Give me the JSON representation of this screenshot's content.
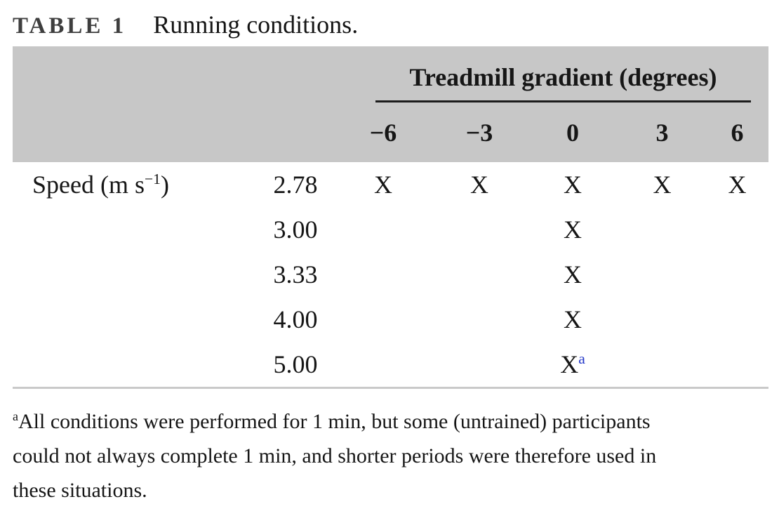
{
  "title": {
    "label": "TABLE 1",
    "caption": "Running conditions."
  },
  "table": {
    "group_header": "Treadmill gradient (degrees)",
    "columns": [
      "−6",
      "−3",
      "0",
      "3",
      "6"
    ],
    "row_header": {
      "prefix": "Speed (m s",
      "sup": "−1",
      "suffix": ")"
    },
    "rows": [
      {
        "speed": "2.78",
        "marks": [
          "X",
          "X",
          "X",
          "X",
          "X"
        ],
        "sups": [
          "",
          "",
          "",
          "",
          ""
        ]
      },
      {
        "speed": "3.00",
        "marks": [
          "",
          "",
          "X",
          "",
          ""
        ],
        "sups": [
          "",
          "",
          "",
          "",
          ""
        ]
      },
      {
        "speed": "3.33",
        "marks": [
          "",
          "",
          "X",
          "",
          ""
        ],
        "sups": [
          "",
          "",
          "",
          "",
          ""
        ]
      },
      {
        "speed": "4.00",
        "marks": [
          "",
          "",
          "X",
          "",
          ""
        ],
        "sups": [
          "",
          "",
          "",
          "",
          ""
        ]
      },
      {
        "speed": "5.00",
        "marks": [
          "",
          "",
          "X",
          "",
          ""
        ],
        "sups": [
          "",
          "",
          "a",
          "",
          ""
        ]
      }
    ]
  },
  "footnote": {
    "marker": "a",
    "lines": [
      "All conditions were performed for 1 min, but some (untrained) participants",
      "could not always complete 1 min, and shorter periods were therefore used in",
      "these situations."
    ]
  },
  "colors": {
    "header_bg": "#c7c7c7",
    "rule_dark": "#1c1c1c",
    "rule_light": "#c9c9c9",
    "text": "#161616",
    "title_label": "#3e3e3e",
    "footnote_link": "#2438c8"
  }
}
